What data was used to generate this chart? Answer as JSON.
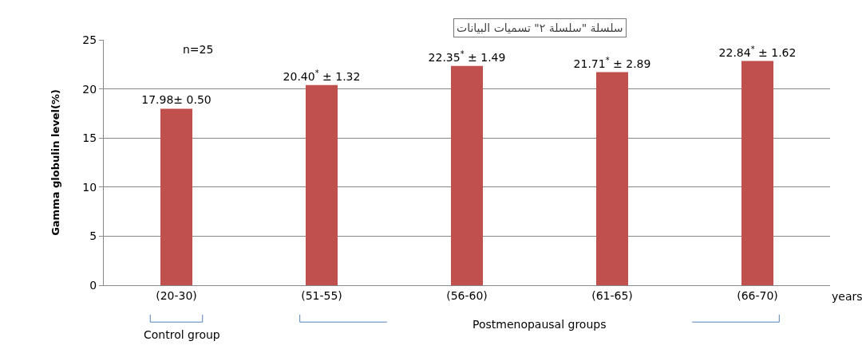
{
  "chart_data": {
    "type": "bar",
    "ylabel": "Gamma globulin level(%)",
    "xlabel": "years",
    "categories": [
      "(20-30)",
      "(51-55)",
      "(56-60)",
      "(61-65)",
      "(66-70)"
    ],
    "values": [
      17.98,
      20.4,
      22.35,
      21.71,
      22.84
    ],
    "value_labels": [
      "17.98± 0.50",
      "20.40$^{*}$ ± 1.32",
      "22.35$^{*}$ ± 1.49",
      "21.71$^{*}$ ± 2.89",
      "22.84$^{*}$ ± 1.62"
    ],
    "color": "#c0504d",
    "ylim": [
      0,
      25
    ],
    "yticks": [
      0,
      5,
      10,
      15,
      20,
      25
    ],
    "grid": "y",
    "annotations": [
      "n=25",
      "Control group",
      "Postmenopausal groups",
      "سلسلة \"سلسلة ٢\" تسميات البيانات"
    ]
  }
}
